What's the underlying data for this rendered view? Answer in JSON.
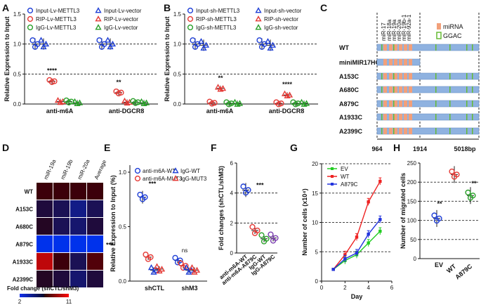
{
  "chart_data": [
    {
      "panel": "A",
      "type": "scatter",
      "ylabel": "Relative Expression to Input",
      "categories": [
        "anti-m6A",
        "anti-DGCR8"
      ],
      "yticks": [
        "0.0",
        "0.5",
        "1.0",
        "1.5"
      ],
      "ylim": [
        0,
        1.5
      ],
      "legend": [
        "Input-Lv-METTL3",
        "Input-Lv-vector",
        "RIP-Lv-METTL3",
        "RIP-Lv-vector",
        "IgG-Lv-METTL3",
        "IgG-Lv-vector"
      ],
      "series": [
        {
          "name": "Input-Lv-METTL3",
          "marker": "circle",
          "color": "#1f3fd6",
          "values": [
            1.0,
            1.0
          ]
        },
        {
          "name": "Input-Lv-vector",
          "marker": "triangle",
          "color": "#1f3fd6",
          "values": [
            1.0,
            1.0
          ]
        },
        {
          "name": "RIP-Lv-METTL3",
          "marker": "circle",
          "color": "#e53935",
          "values": [
            0.38,
            0.19
          ]
        },
        {
          "name": "RIP-Lv-vector",
          "marker": "triangle",
          "color": "#e53935",
          "values": [
            0.04,
            0.03
          ]
        },
        {
          "name": "IgG-Lv-METTL3",
          "marker": "circle",
          "color": "#2aa02a",
          "values": [
            0.04,
            0.03
          ]
        },
        {
          "name": "IgG-Lv-vector",
          "marker": "triangle",
          "color": "#2aa02a",
          "values": [
            0.02,
            0.02
          ]
        }
      ],
      "annotations": [
        "****",
        "**"
      ]
    },
    {
      "panel": "B",
      "type": "scatter",
      "ylabel": "Relative Expression to Input",
      "categories": [
        "anti-m6A",
        "anti-DGCR8"
      ],
      "yticks": [
        "0.0",
        "0.5",
        "1.0",
        "1.5"
      ],
      "ylim": [
        0,
        1.5
      ],
      "legend": [
        "Input-sh-METTL3",
        "Input-sh-vector",
        "RIP-sh-METTL3",
        "RIP-sh-vector",
        "IgG-sh-METTL3",
        "IgG-sh-vector"
      ],
      "series": [
        {
          "name": "Input-sh-METTL3",
          "marker": "circle",
          "color": "#1f3fd6",
          "values": [
            1.0,
            1.0
          ]
        },
        {
          "name": "Input-sh-vector",
          "marker": "triangle",
          "color": "#1f3fd6",
          "values": [
            0.98,
            0.98
          ]
        },
        {
          "name": "RIP-sh-METTL3",
          "marker": "circle",
          "color": "#e53935",
          "values": [
            0.02,
            0.01
          ]
        },
        {
          "name": "RIP-sh-vector",
          "marker": "triangle",
          "color": "#e53935",
          "values": [
            0.26,
            0.15
          ]
        },
        {
          "name": "IgG-sh-METTL3",
          "marker": "circle",
          "color": "#2aa02a",
          "values": [
            0.01,
            0.01
          ]
        },
        {
          "name": "IgG-sh-vector",
          "marker": "triangle",
          "color": "#2aa02a",
          "values": [
            0.01,
            0.01
          ]
        }
      ],
      "annotations": [
        "**",
        "****"
      ]
    },
    {
      "panel": "C",
      "type": "diagram",
      "markers": [
        "miR-17",
        "miR-18a",
        "miR-19a",
        "miR-20a",
        "miR-19b-1",
        "miR-92a-1"
      ],
      "legend": [
        "miRNA",
        "GGAC"
      ],
      "rows": [
        "WT",
        "miniMIR17HG",
        "A153C",
        "A680C",
        "A879C",
        "A1933C",
        "A2399C"
      ],
      "axis_labels": [
        "964",
        "1914",
        "5018bp"
      ]
    },
    {
      "panel": "D",
      "type": "heatmap",
      "columns": [
        "miR-19a",
        "miR-19b",
        "miR-20a",
        "Average"
      ],
      "rows": [
        "WT",
        "A153C",
        "A680C",
        "A879C",
        "A1933C",
        "A2399C"
      ],
      "values": [
        [
          6.5,
          6.5,
          6.5,
          6.5
        ],
        [
          5.5,
          5.0,
          4.0,
          5.0
        ],
        [
          6.0,
          5.0,
          4.5,
          5.5
        ],
        [
          2.0,
          2.0,
          2.0,
          2.0
        ],
        [
          9.5,
          6.5,
          5.0,
          7.0
        ],
        [
          6.0,
          5.5,
          4.5,
          5.5
        ]
      ],
      "colorbar_label": "Fold change (shCTL/shM3)",
      "colorbar_range": [
        "2",
        "11"
      ],
      "annotations": [
        "***"
      ]
    },
    {
      "panel": "E",
      "type": "scatter",
      "ylabel": "Relative Expression to Input (%)",
      "categories": [
        "shCTL",
        "shM3"
      ],
      "yticks": [
        "0.0",
        "0.5",
        "1.0"
      ],
      "ylim": [
        0,
        1.0
      ],
      "legend": [
        "anti-m6A-WT",
        "IgG-WT",
        "anti-m6A-MUT3",
        "IgG-MUT3"
      ],
      "series": [
        {
          "name": "anti-m6A-WT",
          "marker": "circle",
          "color": "#1f3fd6",
          "values": [
            0.77,
            0.19
          ]
        },
        {
          "name": "anti-m6A-MUT3",
          "marker": "circle",
          "color": "#e53935",
          "values": [
            0.22,
            0.14
          ]
        },
        {
          "name": "IgG-WT",
          "marker": "triangle",
          "color": "#1f3fd6",
          "values": [
            0.1,
            0.1
          ]
        },
        {
          "name": "IgG-MUT3",
          "marker": "triangle",
          "color": "#e53935",
          "values": [
            0.11,
            0.1
          ]
        }
      ],
      "annotations": [
        "***",
        "ns"
      ]
    },
    {
      "panel": "F",
      "type": "scatter",
      "ylabel": "Fold changes (shCTL/shM3)",
      "categories": [
        "anti-m6A-WT",
        "anti-m6A-A879C",
        "IgG-WT",
        "IgG-A879C"
      ],
      "yticks": [
        "0",
        "2",
        "4",
        "6"
      ],
      "ylim": [
        0,
        6
      ],
      "values": [
        4.2,
        1.5,
        0.95,
        1.0
      ],
      "colors": [
        "#1f3fd6",
        "#e53935",
        "#2aa02a",
        "#7b3fb0"
      ],
      "annotations": [
        "***"
      ]
    },
    {
      "panel": "G",
      "type": "line",
      "xlabel": "Day",
      "ylabel": "Number of cells (x10⁴)",
      "x": [
        1,
        2,
        3,
        4,
        5
      ],
      "xticks": [
        "0",
        "2",
        "4",
        "6"
      ],
      "xlim": [
        0,
        6
      ],
      "yticks": [
        "0",
        "5",
        "10",
        "15",
        "20"
      ],
      "ylim": [
        0,
        20
      ],
      "legend": [
        "EV",
        "WT",
        "A879C"
      ],
      "series": [
        {
          "name": "EV",
          "color": "#22cc22",
          "values": [
            2.0,
            3.5,
            4.5,
            6.5,
            8.5
          ]
        },
        {
          "name": "WT",
          "color": "#ee2222",
          "values": [
            2.0,
            4.5,
            7.5,
            13.5,
            17.0
          ]
        },
        {
          "name": "A879C",
          "color": "#2233dd",
          "values": [
            2.0,
            3.8,
            4.8,
            8.0,
            10.5
          ]
        }
      ]
    },
    {
      "panel": "H",
      "type": "scatter",
      "ylabel": "Number of migrated cells",
      "categories": [
        "EV",
        "WT",
        "A879C"
      ],
      "yticks": [
        "0",
        "50",
        "100",
        "150",
        "200",
        "250"
      ],
      "ylim": [
        0,
        250
      ],
      "values": [
        105,
        220,
        165
      ],
      "colors": [
        "#1f3fd6",
        "#e53935",
        "#2aa02a"
      ],
      "annotations": [
        "**",
        "**"
      ]
    }
  ]
}
